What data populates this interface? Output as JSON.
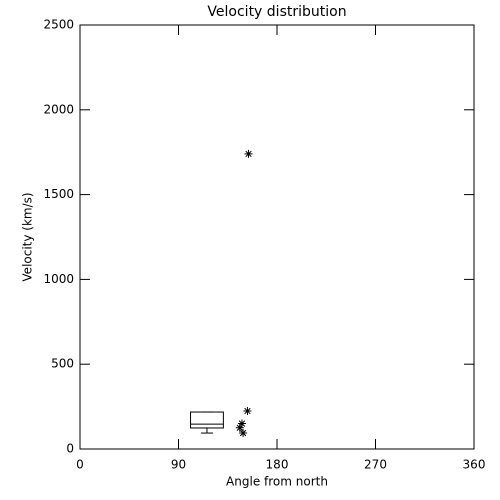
{
  "chart_data": {
    "type": "scatter",
    "title": "Velocity distribution",
    "x_label": "Angle from north",
    "y_label": "Velocity (km/s)",
    "xlim": [
      0,
      360
    ],
    "xticks": [
      0,
      90,
      180,
      270,
      360
    ],
    "ylim": [
      0,
      2500
    ],
    "yticks": [
      0,
      500,
      1000,
      1500,
      2000,
      2500
    ],
    "color": "#000000",
    "x": [
      154,
      153,
      148,
      146,
      149
    ],
    "values": [
      1740,
      224,
      150,
      125,
      94
    ],
    "box": {
      "x_range": [
        101,
        131
      ],
      "min": 94,
      "q1": 124,
      "median": 147,
      "q3": 218,
      "max": 218
    }
  }
}
